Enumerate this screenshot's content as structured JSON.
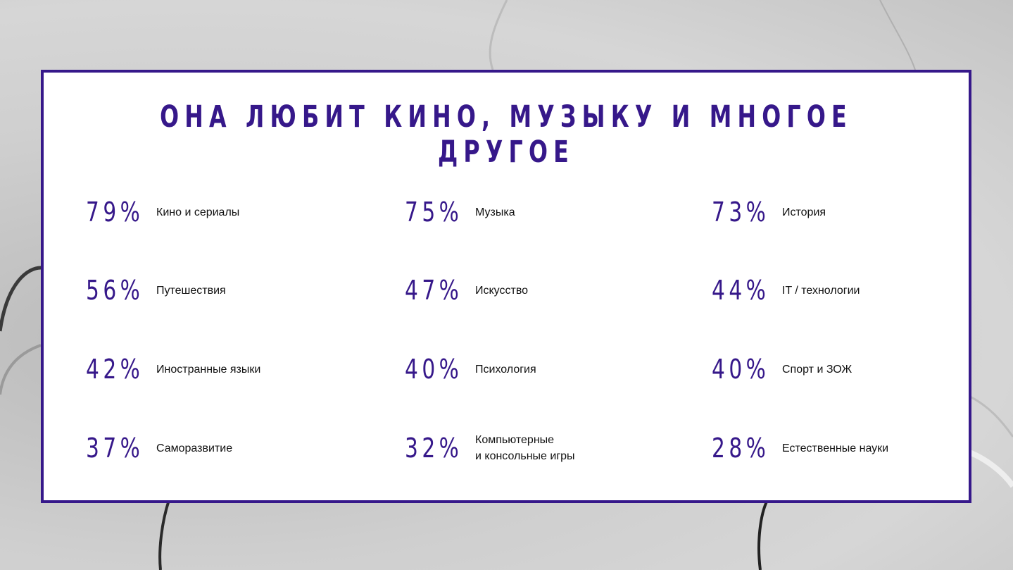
{
  "title": "ОНА ЛЮБИТ КИНО, МУЗЫКУ И МНОГОЕ ДРУГОЕ",
  "colors": {
    "accent": "#36188a",
    "card_background": "#ffffff",
    "page_background": "#c9c9c9"
  },
  "stats": [
    {
      "value": "79%",
      "label": "Кино и сериалы"
    },
    {
      "value": "75%",
      "label": "Музыка"
    },
    {
      "value": "73%",
      "label": "История"
    },
    {
      "value": "56%",
      "label": "Путешествия"
    },
    {
      "value": "47%",
      "label": "Искусство"
    },
    {
      "value": "44%",
      "label": "IT / технологии"
    },
    {
      "value": "42%",
      "label": "Иностранные языки"
    },
    {
      "value": "40%",
      "label": "Психология"
    },
    {
      "value": "40%",
      "label": "Спорт и ЗОЖ"
    },
    {
      "value": "37%",
      "label": "Саморазвитие"
    },
    {
      "value": "32%",
      "label": "Компьютерные\nи консольные игры"
    },
    {
      "value": "28%",
      "label": "Естественные науки"
    }
  ]
}
